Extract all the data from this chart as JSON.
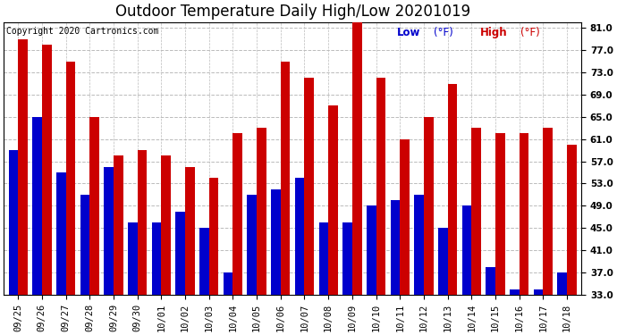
{
  "title": "Outdoor Temperature Daily High/Low 20201019",
  "copyright": "Copyright 2020 Cartronics.com",
  "legend_low": "Low",
  "legend_high": "High",
  "legend_unit": "(°F)",
  "ylim": [
    33.0,
    82.0
  ],
  "ytick_vals": [
    33.0,
    37.0,
    41.0,
    45.0,
    49.0,
    53.0,
    57.0,
    61.0,
    65.0,
    69.0,
    73.0,
    77.0,
    81.0
  ],
  "dates": [
    "09/25",
    "09/26",
    "09/27",
    "09/28",
    "09/29",
    "09/30",
    "10/01",
    "10/02",
    "10/03",
    "10/04",
    "10/05",
    "10/06",
    "10/07",
    "10/08",
    "10/09",
    "10/10",
    "10/11",
    "10/12",
    "10/13",
    "10/14",
    "10/15",
    "10/16",
    "10/17",
    "10/18"
  ],
  "high": [
    79,
    78,
    75,
    65,
    58,
    59,
    58,
    56,
    54,
    62,
    63,
    75,
    72,
    67,
    82,
    72,
    61,
    65,
    71,
    63,
    62,
    62,
    63,
    60
  ],
  "low": [
    59,
    65,
    55,
    51,
    56,
    46,
    46,
    48,
    45,
    37,
    51,
    52,
    54,
    46,
    46,
    49,
    50,
    51,
    45,
    49,
    38,
    34,
    34,
    37
  ],
  "bar_width": 0.4,
  "low_color": "#0000cc",
  "high_color": "#cc0000",
  "background_color": "#ffffff",
  "grid_color": "#bbbbbb",
  "title_fontsize": 12,
  "tick_fontsize": 7.5,
  "copyright_fontsize": 7,
  "legend_fontsize": 8.5
}
